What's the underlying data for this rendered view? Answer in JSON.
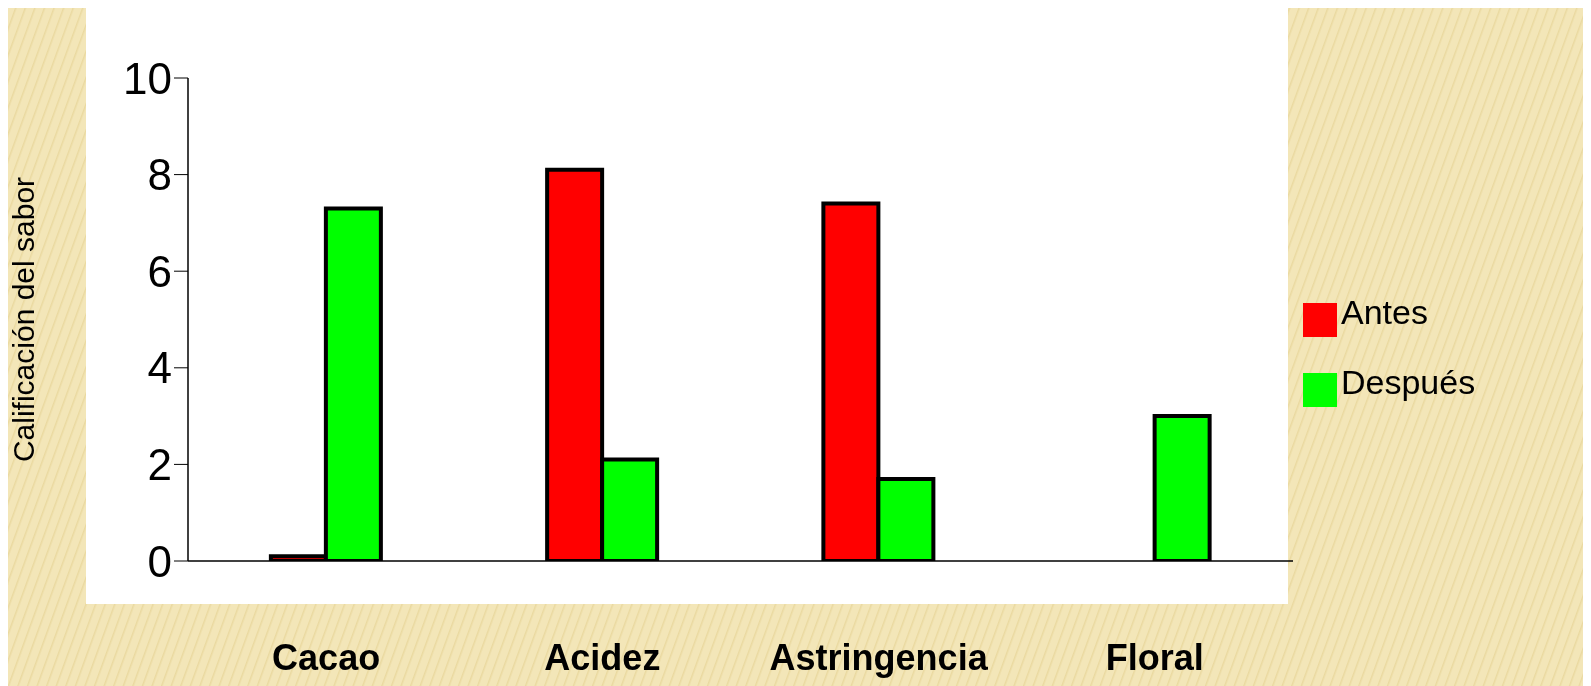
{
  "chart_data": {
    "type": "bar",
    "ylabel": "Calificación del sabor",
    "categories": [
      "Cacao",
      "Acidez",
      "Astringencia",
      "Floral"
    ],
    "series": [
      {
        "name": "Antes",
        "color": "#ff0000",
        "values": [
          0.1,
          8.1,
          7.4,
          null
        ]
      },
      {
        "name": "Después",
        "color": "#00ff00",
        "values": [
          7.3,
          2.1,
          1.7,
          3.0
        ]
      }
    ],
    "ylim": [
      0,
      10
    ],
    "yticks": [
      0,
      2,
      4,
      6,
      8,
      10
    ],
    "grid": false,
    "legend": "right"
  }
}
